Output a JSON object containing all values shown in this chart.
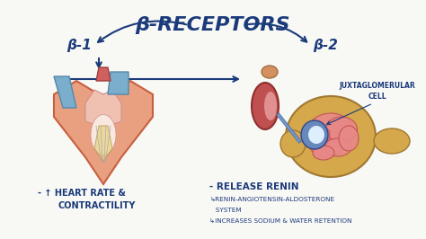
{
  "title": "β-RECEPTORS",
  "title_color": "#1a3a7a",
  "background_color": "#f8f8f5",
  "beta1_label": "β-1",
  "beta2_label": "β-2",
  "label_color": "#1a3a7a",
  "left_text_line1": "- ↑ HEART RATE &",
  "left_text_line2": "CONTRACTILITY",
  "right_text_line1": "- RELEASE RENIN",
  "right_text_line2": "↳RENIN-ANGIOTENSIN-ALDOSTERONE",
  "right_text_line3": "   SYSTEM",
  "right_text_line4": "↳INCREASES SODIUM & WATER RETENTION",
  "juxta_label_line1": "JUXTAGLOMERULAR",
  "juxta_label_line2": "CELL",
  "text_color": "#1a3a7a",
  "arrow_color": "#1a3a7a",
  "heart_outer_color": "#e8a080",
  "heart_outer_edge": "#c86040",
  "heart_inner_color": "#f0c0b0",
  "heart_blue_color": "#7aaecc",
  "heart_blue_edge": "#5588aa",
  "heart_yellow_color": "#e8d080",
  "kidney_color": "#c05050",
  "kidney_edge": "#903030",
  "kidney_inner": "#e09090",
  "adrenal_color": "#d49060",
  "neph_gold_color": "#d4a84b",
  "neph_gold_edge": "#a07830",
  "neph_tube_color": "#e88888",
  "neph_tube_edge": "#c05050",
  "glom_color": "#6688bb",
  "glom_edge": "#334488",
  "glom_white": "#ddeeff",
  "tubule_color": "#d4a84b",
  "tubule_edge": "#a07830"
}
